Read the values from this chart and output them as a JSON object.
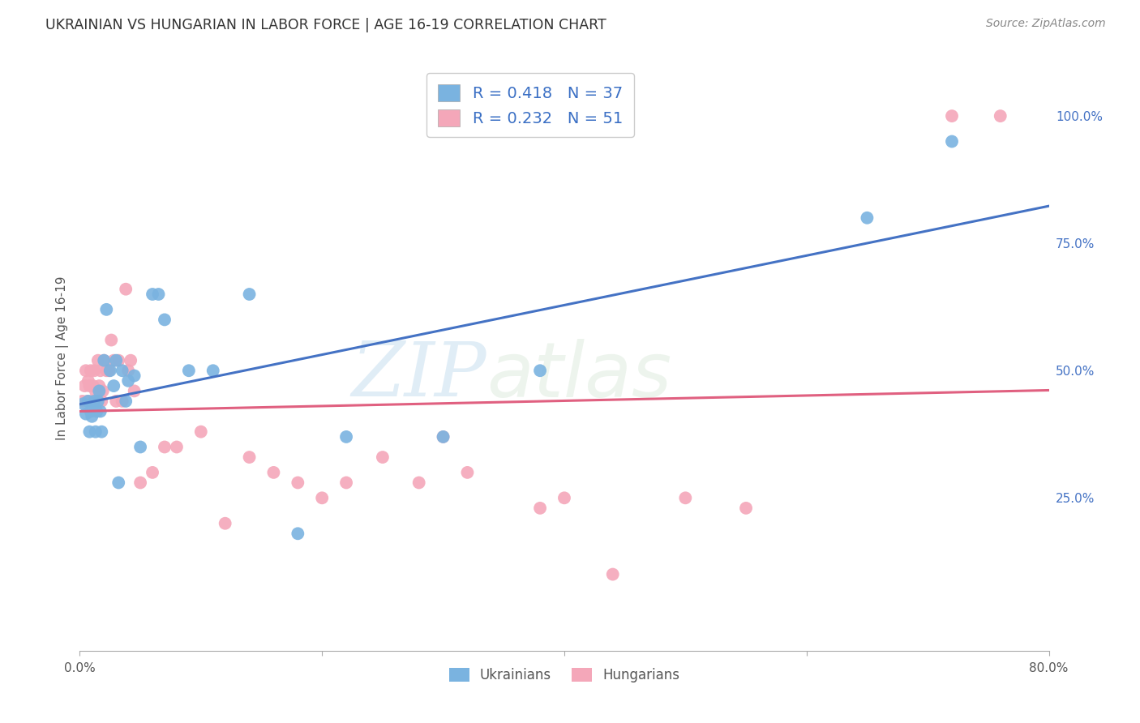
{
  "title": "UKRAINIAN VS HUNGARIAN IN LABOR FORCE | AGE 16-19 CORRELATION CHART",
  "source": "Source: ZipAtlas.com",
  "ylabel": "In Labor Force | Age 16-19",
  "xlim": [
    0.0,
    0.8
  ],
  "ylim": [
    -0.05,
    1.1
  ],
  "ukrainian_R": 0.418,
  "ukrainian_N": 37,
  "hungarian_R": 0.232,
  "hungarian_N": 51,
  "ukrainian_color": "#7ab3e0",
  "hungarian_color": "#f4a7b9",
  "ukrainian_line_color": "#4472c4",
  "hungarian_line_color": "#e06080",
  "background_color": "#ffffff",
  "grid_color": "#dddddd",
  "watermark_zip": "ZIP",
  "watermark_atlas": "atlas",
  "title_color": "#333333",
  "legend_text_color": "#3a6fc4",
  "ukrainians_x": [
    0.003,
    0.005,
    0.007,
    0.008,
    0.009,
    0.01,
    0.011,
    0.012,
    0.013,
    0.014,
    0.015,
    0.016,
    0.017,
    0.018,
    0.02,
    0.022,
    0.025,
    0.028,
    0.03,
    0.032,
    0.035,
    0.038,
    0.04,
    0.045,
    0.05,
    0.06,
    0.065,
    0.07,
    0.09,
    0.11,
    0.14,
    0.18,
    0.22,
    0.3,
    0.38,
    0.65,
    0.72
  ],
  "ukrainians_y": [
    0.435,
    0.415,
    0.44,
    0.38,
    0.42,
    0.41,
    0.435,
    0.44,
    0.38,
    0.42,
    0.44,
    0.46,
    0.42,
    0.38,
    0.52,
    0.62,
    0.5,
    0.47,
    0.52,
    0.28,
    0.5,
    0.44,
    0.48,
    0.49,
    0.35,
    0.65,
    0.65,
    0.6,
    0.5,
    0.5,
    0.65,
    0.18,
    0.37,
    0.37,
    0.5,
    0.8,
    0.95
  ],
  "hungarians_x": [
    0.002,
    0.004,
    0.005,
    0.006,
    0.007,
    0.008,
    0.009,
    0.01,
    0.011,
    0.012,
    0.013,
    0.014,
    0.015,
    0.016,
    0.017,
    0.018,
    0.019,
    0.02,
    0.022,
    0.024,
    0.026,
    0.028,
    0.03,
    0.032,
    0.035,
    0.038,
    0.04,
    0.042,
    0.045,
    0.05,
    0.06,
    0.07,
    0.08,
    0.1,
    0.12,
    0.14,
    0.16,
    0.18,
    0.2,
    0.22,
    0.25,
    0.28,
    0.3,
    0.32,
    0.38,
    0.4,
    0.44,
    0.5,
    0.55,
    0.72,
    0.76
  ],
  "hungarians_y": [
    0.44,
    0.47,
    0.5,
    0.44,
    0.48,
    0.47,
    0.5,
    0.44,
    0.47,
    0.5,
    0.46,
    0.44,
    0.52,
    0.47,
    0.5,
    0.44,
    0.46,
    0.52,
    0.5,
    0.5,
    0.56,
    0.52,
    0.44,
    0.52,
    0.44,
    0.66,
    0.5,
    0.52,
    0.46,
    0.28,
    0.3,
    0.35,
    0.35,
    0.38,
    0.2,
    0.33,
    0.3,
    0.28,
    0.25,
    0.28,
    0.33,
    0.28,
    0.37,
    0.3,
    0.23,
    0.25,
    0.1,
    0.25,
    0.23,
    1.0,
    1.0
  ]
}
